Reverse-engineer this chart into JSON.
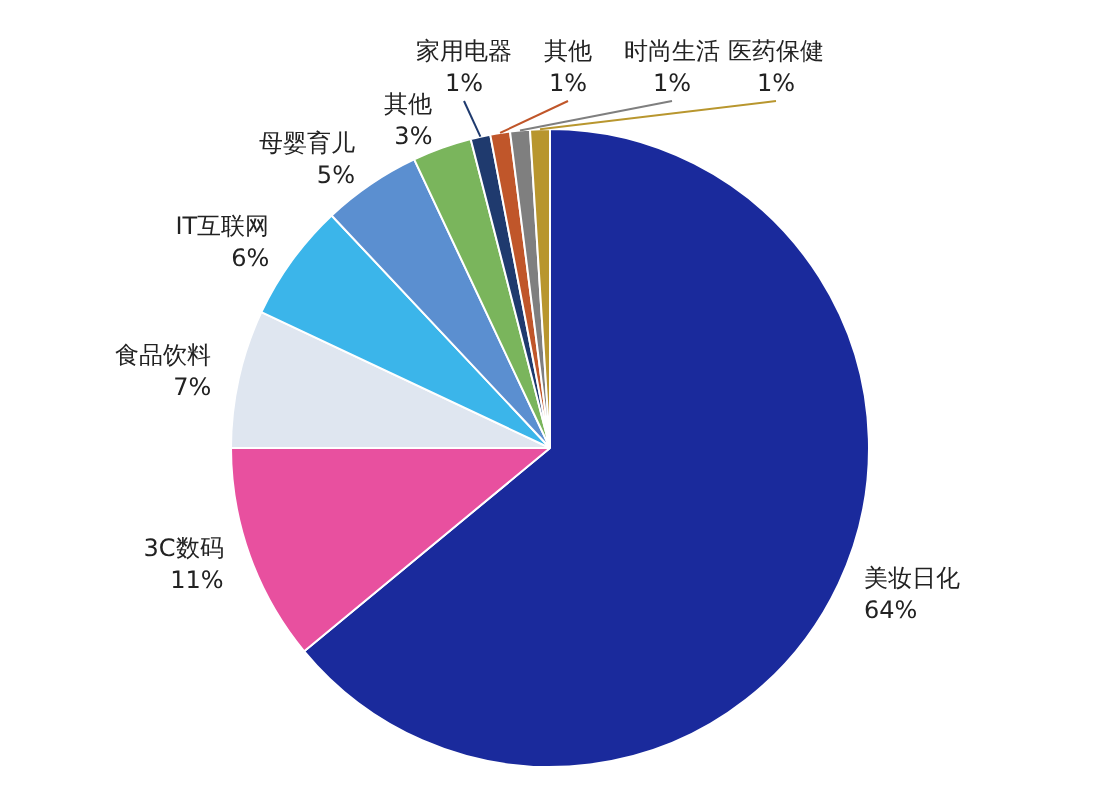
{
  "chart_data": {
    "type": "pie",
    "categories": [
      "美妆日化",
      "3C数码",
      "食品饮料",
      "IT互联网",
      "母婴育儿",
      "其他",
      "家用电器",
      "其他",
      "时尚生活",
      "医药保健"
    ],
    "values": [
      64,
      11,
      7,
      6,
      5,
      3,
      1,
      1,
      1,
      1
    ],
    "value_labels": [
      "64%",
      "11%",
      "7%",
      "6%",
      "5%",
      "3%",
      "1%",
      "1%",
      "1%",
      "1%"
    ],
    "colors": [
      "#1a2a9c",
      "#e8509f",
      "#dfe6f0",
      "#3bb5ea",
      "#5b8fd0",
      "#7ab55c",
      "#1f3a6e",
      "#c0562a",
      "#7f7f7f",
      "#b8962e"
    ]
  }
}
